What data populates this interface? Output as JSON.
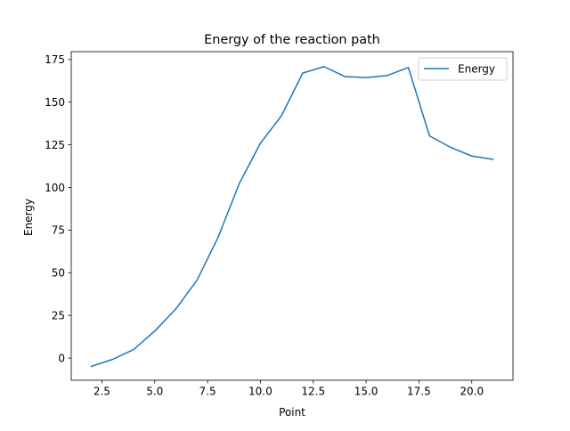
{
  "chart_data": {
    "type": "line",
    "title": "Energy of the reaction path",
    "xlabel": "Point",
    "ylabel": "Energy",
    "xlim": [
      1.05,
      21.95
    ],
    "ylim": [
      -13.0,
      179.6
    ],
    "xticks": [
      2.5,
      5.0,
      7.5,
      10.0,
      12.5,
      15.0,
      17.5,
      20.0
    ],
    "xtick_labels": [
      "2.5",
      "5.0",
      "7.5",
      "10.0",
      "12.5",
      "15.0",
      "17.5",
      "20.0"
    ],
    "yticks": [
      0,
      25,
      50,
      75,
      100,
      125,
      150,
      175
    ],
    "ytick_labels": [
      "0",
      "25",
      "50",
      "75",
      "100",
      "125",
      "150",
      "175"
    ],
    "grid": false,
    "legend": "top-right",
    "series": [
      {
        "name": "Energy",
        "color": "#1f77b4",
        "x": [
          2,
          3,
          4,
          5,
          6,
          7,
          8,
          9,
          10,
          11,
          12,
          13,
          14,
          15,
          16,
          17,
          18,
          19,
          20,
          21
        ],
        "y": [
          -4.9,
          -0.8,
          5.0,
          15.8,
          28.8,
          45.6,
          70.8,
          102.3,
          125.9,
          142.1,
          167.0,
          170.8,
          165.0,
          164.4,
          165.6,
          170.3,
          130.2,
          123.5,
          118.4,
          116.5
        ]
      }
    ]
  }
}
